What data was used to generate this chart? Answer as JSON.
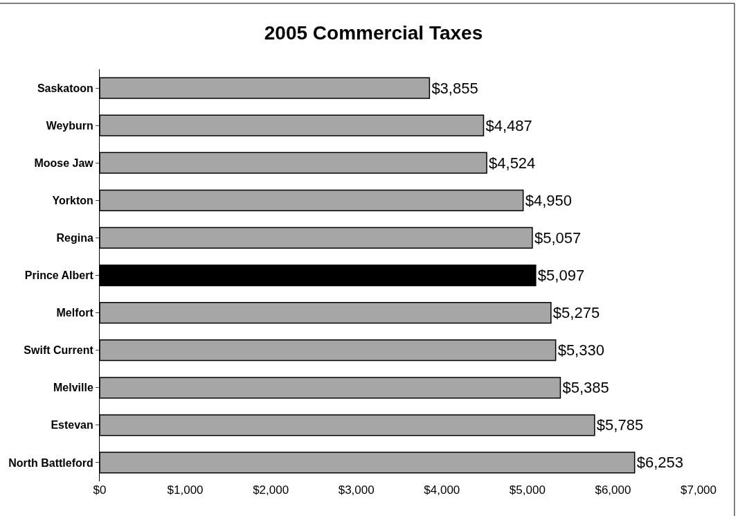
{
  "chart_data": {
    "type": "bar",
    "orientation": "horizontal",
    "title": "2005 Commercial Taxes",
    "categories": [
      "Saskatoon",
      "Weyburn",
      "Moose Jaw",
      "Yorkton",
      "Regina",
      "Prince Albert",
      "Melfort",
      "Swift Current",
      "Melville",
      "Estevan",
      "North Battleford"
    ],
    "values": [
      3855,
      4487,
      4524,
      4950,
      5057,
      5097,
      5275,
      5330,
      5385,
      5785,
      6253
    ],
    "value_labels": [
      "$3,855",
      "$4,487",
      "$4,524",
      "$4,950",
      "$5,057",
      "$5,097",
      "$5,275",
      "$5,330",
      "$5,385",
      "$5,785",
      "$6,253"
    ],
    "colors": [
      "#a6a6a6",
      "#a6a6a6",
      "#a6a6a6",
      "#a6a6a6",
      "#a6a6a6",
      "#000000",
      "#a6a6a6",
      "#a6a6a6",
      "#a6a6a6",
      "#a6a6a6",
      "#a6a6a6"
    ],
    "xlim": [
      0,
      7000
    ],
    "xticks": [
      {
        "value": 0,
        "label": "$0"
      },
      {
        "value": 1000,
        "label": "$1,000"
      },
      {
        "value": 2000,
        "label": "$2,000"
      },
      {
        "value": 3000,
        "label": "$3,000"
      },
      {
        "value": 4000,
        "label": "$4,000"
      },
      {
        "value": 5000,
        "label": "$5,000"
      },
      {
        "value": 6000,
        "label": "$6,000"
      },
      {
        "value": 7000,
        "label": "$7,000"
      }
    ],
    "legend": false
  }
}
